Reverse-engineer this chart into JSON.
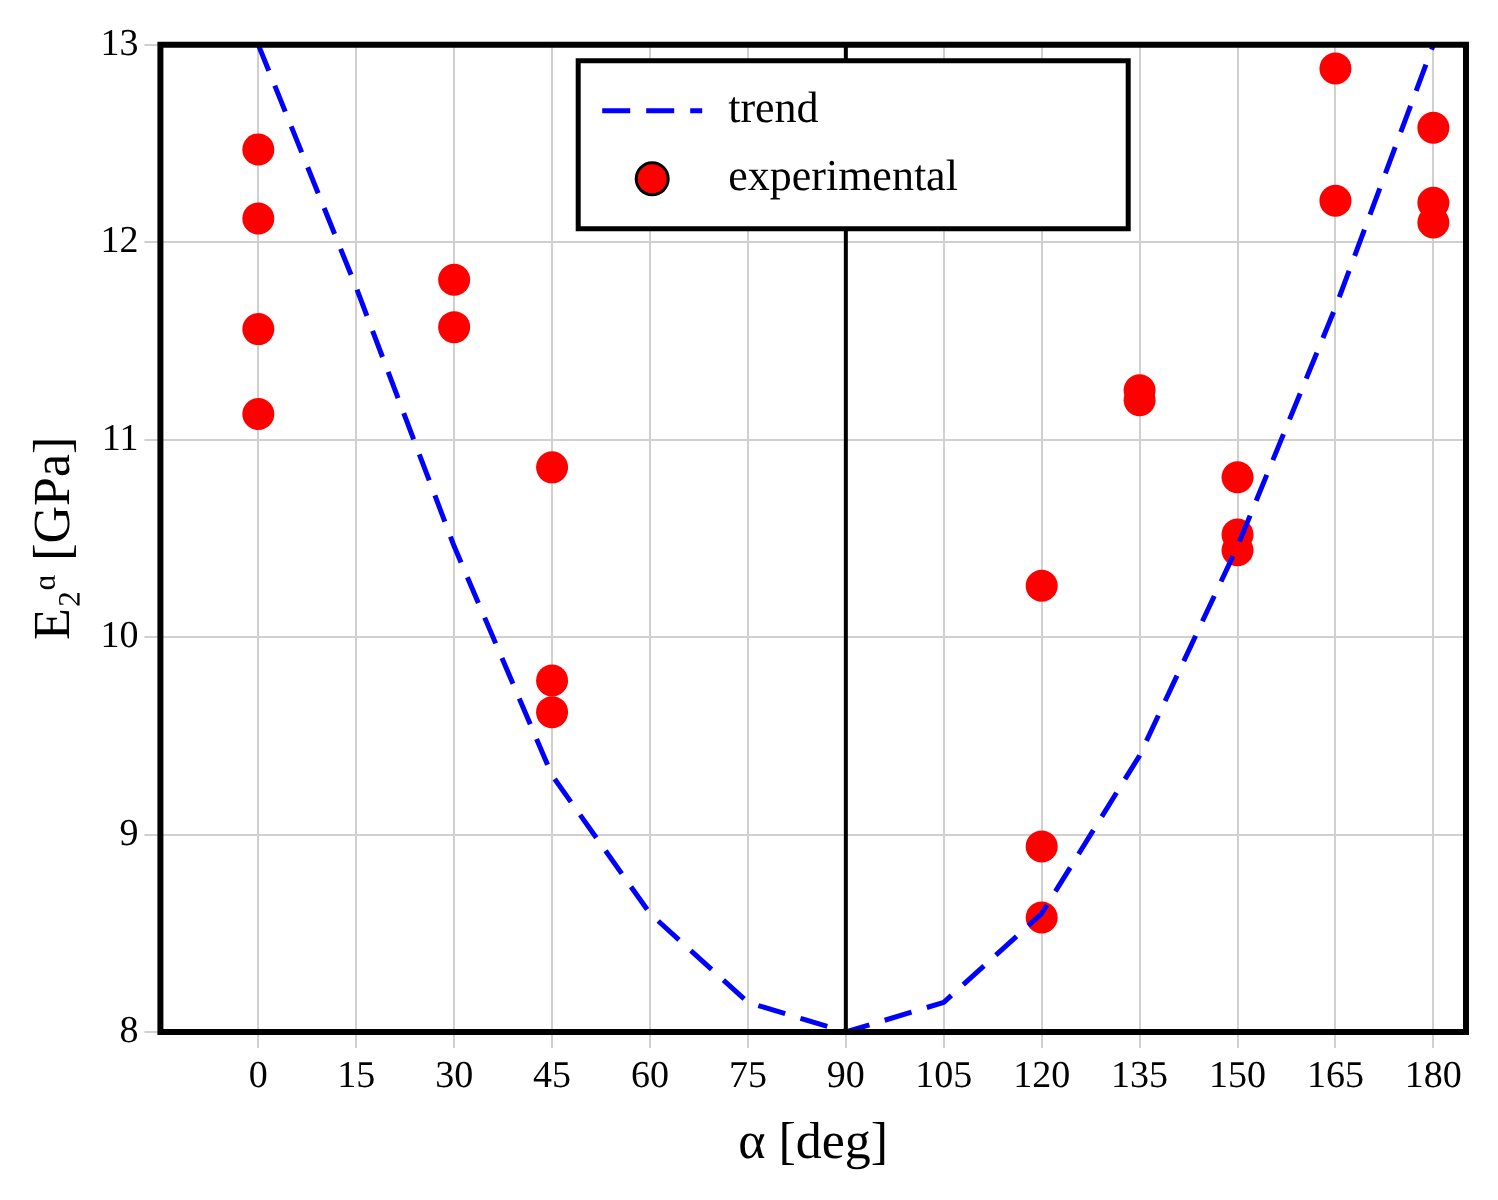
{
  "chart_data": {
    "type": "scatter",
    "xlabel": "α [deg]",
    "ylabel": "E₂ᵅ [GPa]",
    "xlim": [
      -15,
      185
    ],
    "xticks": [
      0,
      15,
      30,
      45,
      60,
      75,
      90,
      105,
      120,
      135,
      150,
      165,
      180
    ],
    "ylim": [
      8,
      13
    ],
    "yticks": [
      8,
      9,
      10,
      11,
      12,
      13
    ],
    "grid": true,
    "legend": "top",
    "ref_lines": [
      {
        "axis": "x",
        "value": 90,
        "color": "#000000"
      }
    ],
    "series": [
      {
        "name": "trend",
        "type": "line",
        "color": "#0000ff",
        "line_style": "dashed",
        "marker": "none",
        "x": [
          0,
          15,
          30,
          45,
          60,
          75,
          90,
          105,
          120,
          135,
          150,
          165,
          180
        ],
        "values": [
          13,
          11.77,
          10.46,
          9.3,
          8.6,
          8.15,
          8,
          8.15,
          8.6,
          9.4,
          10.46,
          11.67,
          13
        ]
      },
      {
        "name": "experimental",
        "type": "scatter",
        "color": "#ff0000",
        "marker": "circle",
        "x": [
          0,
          0,
          0,
          0,
          30,
          30,
          45,
          45,
          45,
          120,
          120,
          120,
          135,
          135,
          150,
          150,
          150,
          165,
          165,
          180,
          180,
          180
        ],
        "values": [
          12.47,
          12.12,
          11.56,
          11.13,
          11.81,
          11.57,
          10.86,
          9.78,
          9.62,
          10.26,
          8.94,
          8.58,
          11.25,
          11.2,
          10.81,
          10.52,
          10.44,
          12.88,
          12.21,
          12.58,
          12.2,
          12.1
        ]
      }
    ]
  }
}
